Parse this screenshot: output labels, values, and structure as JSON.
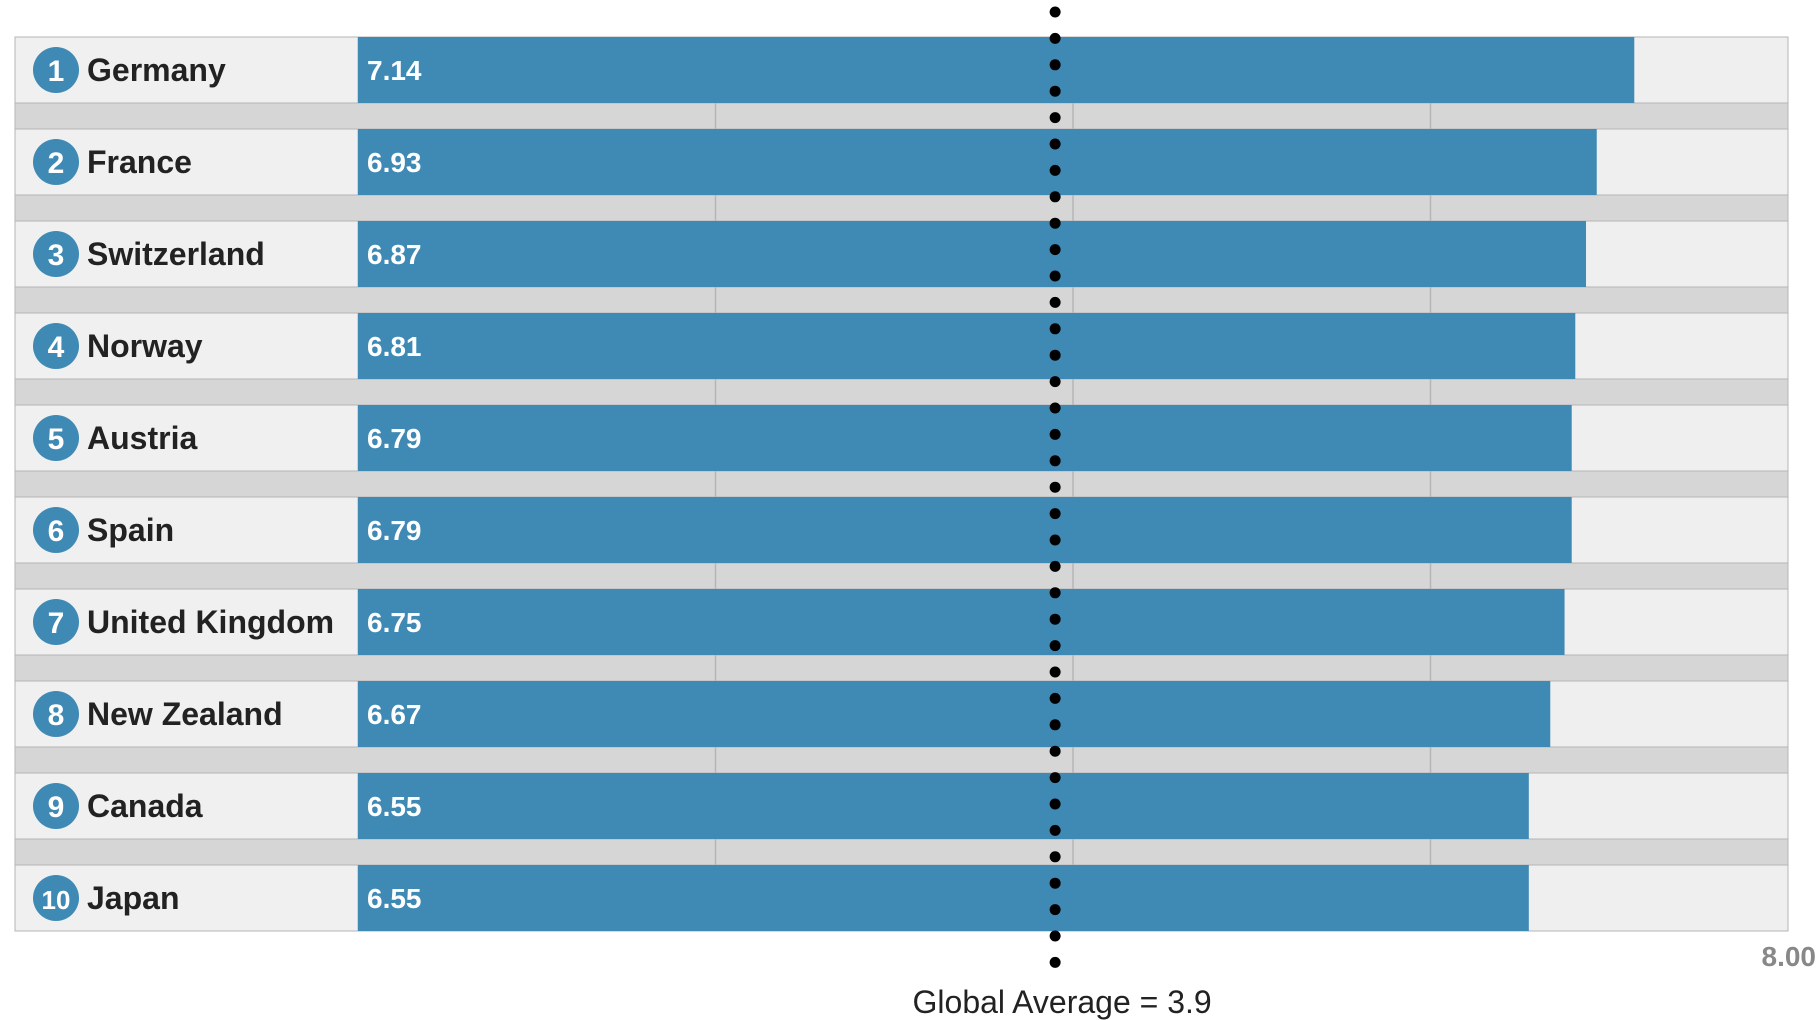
{
  "colors": {
    "bar": "#3f89b5",
    "rank_circle": "#3f89b5",
    "label_cell_bg": "#f0f0f0",
    "track_bg": "#efefef",
    "separator_bg": "#d6d6d6",
    "grid": "#b5b5b5",
    "reference_dots": "#000000"
  },
  "chart_data": {
    "type": "bar",
    "orientation": "horizontal",
    "categories": [
      "Germany",
      "France",
      "Switzerland",
      "Norway",
      "Austria",
      "Spain",
      "United Kingdom",
      "New Zealand",
      "Canada",
      "Japan"
    ],
    "ranks": [
      "1",
      "2",
      "3",
      "4",
      "5",
      "6",
      "7",
      "8",
      "9",
      "10"
    ],
    "values": [
      7.14,
      6.93,
      6.87,
      6.81,
      6.79,
      6.79,
      6.75,
      6.67,
      6.55,
      6.55
    ],
    "value_labels": [
      "7.14",
      "6.93",
      "6.87",
      "6.81",
      "6.79",
      "6.79",
      "6.75",
      "6.67",
      "6.55",
      "6.55"
    ],
    "xlim": [
      0,
      8
    ],
    "axis_max_label": "8.00",
    "gridlines": [
      2,
      4,
      6
    ],
    "reference_line": {
      "value": 3.9,
      "label": "Global Average = 3.9",
      "style": "dotted"
    },
    "title": "",
    "xlabel": "",
    "ylabel": "",
    "legend": "none"
  }
}
